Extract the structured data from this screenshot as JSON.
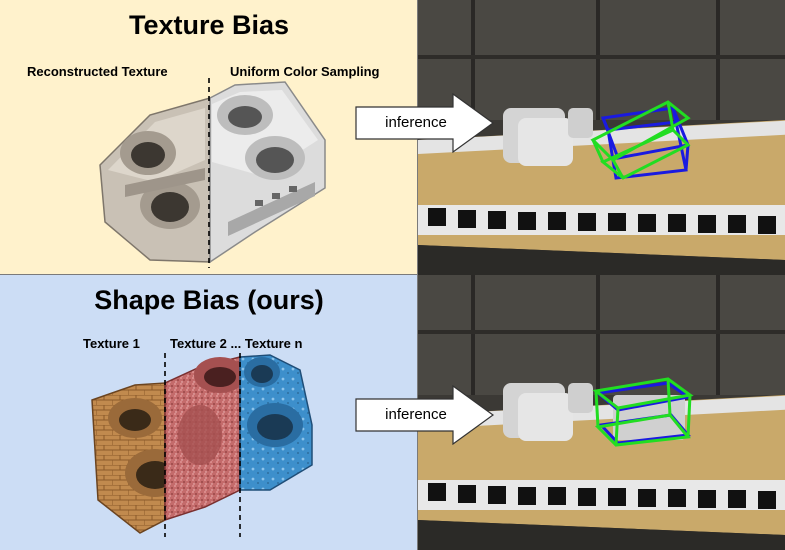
{
  "top": {
    "title": "Texture Bias",
    "left_label": "Reconstructed Texture",
    "right_label": "Uniform Color Sampling",
    "arrow_label": "inference"
  },
  "bottom": {
    "title": "Shape Bias (ours)",
    "label_1": "Texture 1",
    "label_2": "Texture 2 ... Texture n",
    "arrow_label": "inference"
  },
  "colors": {
    "top_bg": "#FFF2CC",
    "bottom_bg": "#CCDDF5",
    "box_green": "#22DD22",
    "box_blue": "#1A1AE0"
  }
}
